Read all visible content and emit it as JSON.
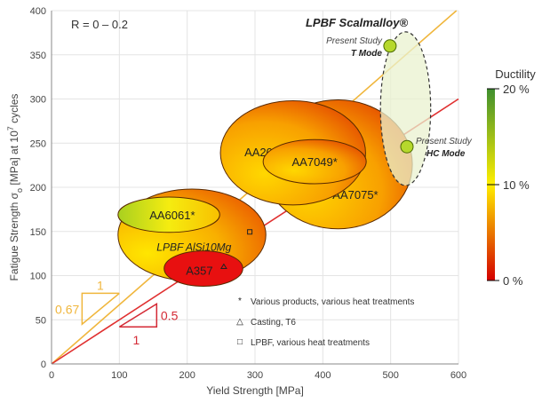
{
  "chart_data": {
    "type": "scatter",
    "annotation_top_left": "R = 0 – 0.2",
    "xlabel": "Yield Strength [MPa]",
    "ylabel_pre": "Fatigue Strength σ",
    "ylabel_sub": "o",
    "ylabel_post": " [MPa] at 10",
    "ylabel_sup": "7",
    "ylabel_end": " cycles",
    "xlim": [
      0,
      600
    ],
    "ylim": [
      0,
      400
    ],
    "xticks": [
      0,
      100,
      200,
      300,
      400,
      500,
      600
    ],
    "yticks": [
      0,
      50,
      100,
      150,
      200,
      250,
      300,
      350,
      400
    ],
    "grid": true,
    "lines": [
      {
        "name": "slope-0.67",
        "slope": 0.67,
        "color": "#f0b63c"
      },
      {
        "name": "slope-0.5",
        "slope": 0.5,
        "color": "#e03030"
      }
    ],
    "slope_triangles": [
      {
        "run_label": "1",
        "rise_label": "0.67",
        "color": "#f0b63c"
      },
      {
        "run_label": "1",
        "rise_label": "0.5",
        "color": "#d42a35"
      }
    ],
    "regions": [
      {
        "label": "AA7075*",
        "cx": 422,
        "cy": 226,
        "rx": 110,
        "ry": 73,
        "ductility": [
          4,
          12
        ]
      },
      {
        "label": "AA2024*",
        "cx": 356,
        "cy": 239,
        "rx": 107,
        "ry": 59,
        "ductility": [
          6,
          14
        ]
      },
      {
        "label": "AA7049*",
        "cx": 388,
        "cy": 229,
        "rx": 76,
        "ry": 25,
        "ductility": [
          6,
          12
        ]
      },
      {
        "label": "LPBF AlSi10Mg",
        "cx": 207,
        "cy": 146,
        "rx": 109,
        "ry": 52,
        "ductility": [
          4,
          12
        ]
      },
      {
        "label": "AA6061*",
        "cx": 173,
        "cy": 169,
        "rx": 75,
        "ry": 20,
        "ductility": [
          8,
          18
        ]
      },
      {
        "label": "A357",
        "cx": 224,
        "cy": 108,
        "rx": 58,
        "ry": 20,
        "ductility": [
          0,
          3
        ]
      },
      {
        "label": "LPBF Scalmalloy®",
        "cx": 522,
        "cy": 289,
        "rx": 37,
        "ry": 87,
        "dashed": true
      }
    ],
    "points": [
      {
        "label1": "Present Study",
        "label2": "T Mode",
        "x": 499,
        "y": 360
      },
      {
        "label1": "Present Study",
        "label2": "HC Mode",
        "x": 524,
        "y": 246
      }
    ],
    "legend": [
      {
        "symbol": "*",
        "text": "Various products, various heat treatments"
      },
      {
        "symbol": "△",
        "text": "Casting, T6"
      },
      {
        "symbol": "□",
        "text": "LPBF, various heat treatments"
      }
    ],
    "colorbar": {
      "title": "Ductility",
      "ticks": [
        "20 %",
        "10 %",
        "0 %"
      ],
      "colors": [
        "#d40000",
        "#ffee00",
        "#3f8f2f"
      ]
    }
  }
}
